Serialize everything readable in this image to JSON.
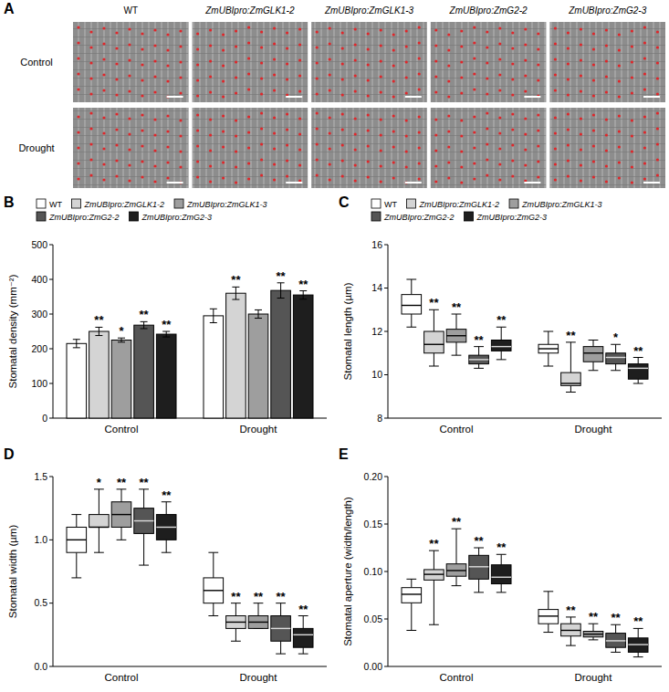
{
  "panel_a": {
    "panel": "A",
    "columns": [
      "WT",
      "ZmUBIpro:ZmGLK1-2",
      "ZmUBIpro:ZmGLK1-3",
      "ZmUBIpro:ZmG2-2",
      "ZmUBIpro:ZmG2-3"
    ],
    "rows": [
      "Control",
      "Drought"
    ]
  },
  "chart_data": [
    {
      "panel": "B",
      "type": "bar",
      "ylabel": "Stomatal density (mm⁻²)",
      "categories": [
        "Control",
        "Drought"
      ],
      "ylim": [
        0,
        500
      ],
      "yticks": [
        0,
        100,
        200,
        300,
        400,
        500
      ],
      "legend": "top",
      "series": [
        {
          "name": "WT",
          "color": "#ffffff",
          "values": [
            215,
            295
          ],
          "errors": [
            12,
            20
          ]
        },
        {
          "name": "ZmUBIpro:ZmGLK1-2",
          "color": "#d4d4d4",
          "values": [
            250,
            360
          ],
          "errors": [
            12,
            18
          ],
          "significance": [
            "**",
            "**"
          ]
        },
        {
          "name": "ZmUBIpro:ZmGLK1-3",
          "color": "#9e9e9e",
          "values": [
            225,
            300
          ],
          "errors": [
            6,
            12
          ],
          "significance": [
            "*",
            null
          ]
        },
        {
          "name": "ZmUBIpro:ZmG2-2",
          "color": "#555555",
          "values": [
            268,
            368
          ],
          "errors": [
            10,
            22
          ],
          "significance": [
            "**",
            "**"
          ]
        },
        {
          "name": "ZmUBIpro:ZmG2-3",
          "color": "#1e1e1e",
          "values": [
            242,
            355
          ],
          "errors": [
            8,
            12
          ],
          "significance": [
            "**",
            "**"
          ]
        }
      ]
    },
    {
      "panel": "C",
      "type": "box",
      "ylabel": "Stomatal length (µm)",
      "categories": [
        "Control",
        "Drought"
      ],
      "ylim": [
        8,
        16
      ],
      "yticks": [
        8,
        10,
        12,
        14,
        16
      ],
      "legend": "top",
      "series": [
        {
          "name": "WT",
          "color": "#ffffff",
          "min": [
            12.2,
            10.4
          ],
          "q1": [
            12.8,
            11.0
          ],
          "median": [
            13.2,
            11.2
          ],
          "q3": [
            13.7,
            11.4
          ],
          "max": [
            14.4,
            12.0
          ]
        },
        {
          "name": "ZmUBIpro:ZmGLK1-2",
          "color": "#d4d4d4",
          "min": [
            10.4,
            9.2
          ],
          "q1": [
            11.0,
            9.5
          ],
          "median": [
            11.4,
            9.6
          ],
          "q3": [
            12.0,
            10.1
          ],
          "max": [
            13.0,
            11.5
          ],
          "significance": [
            "**",
            "**"
          ]
        },
        {
          "name": "ZmUBIpro:ZmGLK1-3",
          "color": "#9e9e9e",
          "min": [
            10.9,
            10.2
          ],
          "q1": [
            11.5,
            10.6
          ],
          "median": [
            11.8,
            11.0
          ],
          "q3": [
            12.1,
            11.3
          ],
          "max": [
            12.8,
            11.6
          ],
          "significance": [
            "**",
            null
          ]
        },
        {
          "name": "ZmUBIpro:ZmG2-2",
          "color": "#555555",
          "min": [
            10.3,
            10.2
          ],
          "q1": [
            10.5,
            10.5
          ],
          "median": [
            10.7,
            10.8
          ],
          "q3": [
            10.9,
            11.0
          ],
          "max": [
            11.3,
            11.4
          ],
          "significance": [
            "**",
            "*"
          ]
        },
        {
          "name": "ZmUBIpro:ZmG2-3",
          "color": "#1e1e1e",
          "min": [
            10.7,
            9.6
          ],
          "q1": [
            11.1,
            9.8
          ],
          "median": [
            11.3,
            10.3
          ],
          "q3": [
            11.6,
            10.5
          ],
          "max": [
            12.2,
            10.8
          ],
          "significance": [
            "**",
            "**"
          ]
        }
      ]
    },
    {
      "panel": "D",
      "type": "box",
      "ylabel": "Stomatal width (µm)",
      "categories": [
        "Control",
        "Drought"
      ],
      "ylim": [
        0,
        1.5
      ],
      "yticks": [
        {
          "value": 0,
          "label": "0.0"
        },
        0.5,
        {
          "value": 1,
          "label": "1.0"
        },
        1.5
      ],
      "series": [
        {
          "color": "#ffffff",
          "min": [
            0.7,
            0.4
          ],
          "q1": [
            0.9,
            0.5
          ],
          "median": [
            1.0,
            0.6
          ],
          "q3": [
            1.1,
            0.7
          ],
          "max": [
            1.2,
            0.9
          ]
        },
        {
          "color": "#d4d4d4",
          "min": [
            0.9,
            0.2
          ],
          "q1": [
            1.1,
            0.3
          ],
          "median": [
            1.1,
            0.35
          ],
          "q3": [
            1.2,
            0.4
          ],
          "max": [
            1.4,
            0.5
          ],
          "significance": [
            "*",
            "**"
          ]
        },
        {
          "color": "#9e9e9e",
          "min": [
            1.0,
            0.3
          ],
          "q1": [
            1.1,
            0.3
          ],
          "median": [
            1.2,
            0.35
          ],
          "q3": [
            1.3,
            0.4
          ],
          "max": [
            1.4,
            0.5
          ],
          "significance": [
            "**",
            "**"
          ]
        },
        {
          "color": "#555555",
          "min": [
            0.8,
            0.1
          ],
          "q1": [
            1.05,
            0.2
          ],
          "median": [
            1.15,
            0.3
          ],
          "q3": [
            1.25,
            0.4
          ],
          "max": [
            1.4,
            0.5
          ],
          "significance": [
            "**",
            "**"
          ]
        },
        {
          "color": "#1e1e1e",
          "min": [
            0.9,
            0.1
          ],
          "q1": [
            1.0,
            0.15
          ],
          "median": [
            1.1,
            0.25
          ],
          "q3": [
            1.2,
            0.3
          ],
          "max": [
            1.3,
            0.4
          ],
          "significance": [
            "**",
            "**"
          ]
        }
      ]
    },
    {
      "panel": "E",
      "type": "box",
      "ylabel": "Stomatal aperture (width/length)",
      "categories": [
        "Control",
        "Drought"
      ],
      "ylim": [
        0,
        0.2
      ],
      "yticks": [
        {
          "value": 0,
          "label": "0.00"
        },
        0.05,
        {
          "value": 0.1,
          "label": "0.10"
        },
        0.15,
        {
          "value": 0.2,
          "label": "0.20"
        }
      ],
      "series": [
        {
          "color": "#ffffff",
          "min": [
            0.038,
            0.036
          ],
          "q1": [
            0.067,
            0.045
          ],
          "median": [
            0.076,
            0.053
          ],
          "q3": [
            0.083,
            0.06
          ],
          "max": [
            0.092,
            0.079
          ]
        },
        {
          "color": "#d4d4d4",
          "min": [
            0.044,
            0.022
          ],
          "q1": [
            0.091,
            0.032
          ],
          "median": [
            0.097,
            0.038
          ],
          "q3": [
            0.102,
            0.045
          ],
          "max": [
            0.122,
            0.052
          ],
          "significance": [
            "**",
            "**"
          ]
        },
        {
          "color": "#9e9e9e",
          "min": [
            0.085,
            0.028
          ],
          "q1": [
            0.095,
            0.031
          ],
          "median": [
            0.101,
            0.034
          ],
          "q3": [
            0.108,
            0.037
          ],
          "max": [
            0.145,
            0.045
          ],
          "significance": [
            "**",
            "**"
          ]
        },
        {
          "color": "#555555",
          "min": [
            0.078,
            0.015
          ],
          "q1": [
            0.092,
            0.02
          ],
          "median": [
            0.105,
            0.027
          ],
          "q3": [
            0.117,
            0.035
          ],
          "max": [
            0.125,
            0.044
          ],
          "significance": [
            "**",
            "**"
          ]
        },
        {
          "color": "#1e1e1e",
          "min": [
            0.078,
            0.01
          ],
          "q1": [
            0.087,
            0.015
          ],
          "median": [
            0.094,
            0.023
          ],
          "q3": [
            0.107,
            0.03
          ],
          "max": [
            0.118,
            0.04
          ],
          "significance": [
            "**",
            "**"
          ]
        }
      ]
    }
  ]
}
